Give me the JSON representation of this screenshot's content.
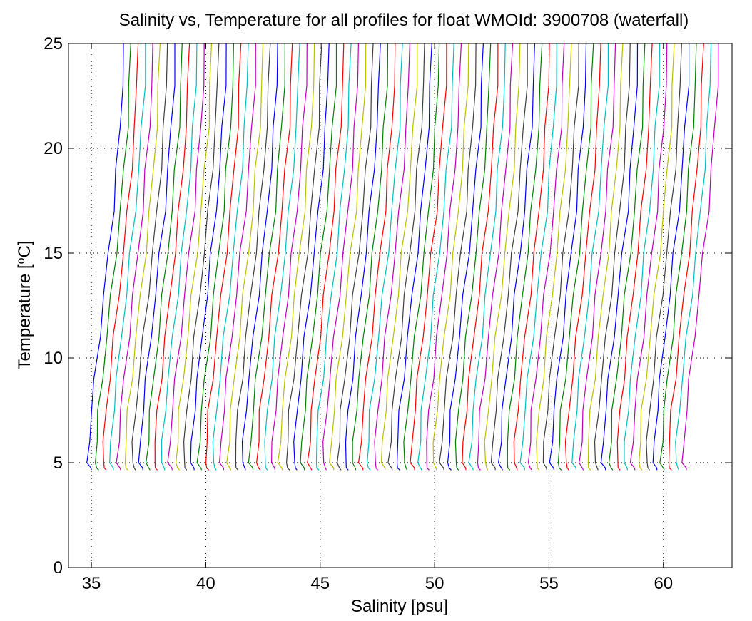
{
  "chart_data": {
    "type": "line",
    "title": "Salinity vs, Temperature for all profiles for float WMOId: 3900708 (waterfall)",
    "xlabel": "Salinity [psu]",
    "ylabel_main": "Temperature [",
    "ylabel_sup": "o",
    "ylabel_end": "C]",
    "xlim": [
      34,
      63
    ],
    "ylim": [
      0,
      25
    ],
    "xticks": [
      35,
      40,
      45,
      50,
      55,
      60
    ],
    "yticks": [
      0,
      5,
      10,
      15,
      20,
      25
    ],
    "grid": true,
    "grid_style": "dotted",
    "series_count": 82,
    "series_offset_psu": 0.32,
    "color_cycle": [
      "#0000ff",
      "#008000",
      "#ff0000",
      "#00bfbf",
      "#bf00bf",
      "#bfbf00",
      "#404040"
    ],
    "base_profile": {
      "temperature": [
        4.65,
        4.75,
        5.0,
        6.0,
        7.5,
        9.0,
        11.0,
        13.0,
        15.0,
        17.0,
        19.0,
        21.0,
        23.0,
        25.0
      ],
      "salinity_offset": [
        0.0,
        -0.05,
        -0.15,
        -0.1,
        0.0,
        0.15,
        0.35,
        0.55,
        0.75,
        0.95,
        1.1,
        1.25,
        1.35,
        1.4
      ]
    },
    "first_profile_start_salinity": 35.0,
    "last_profile_start_salinity": 61.0
  }
}
